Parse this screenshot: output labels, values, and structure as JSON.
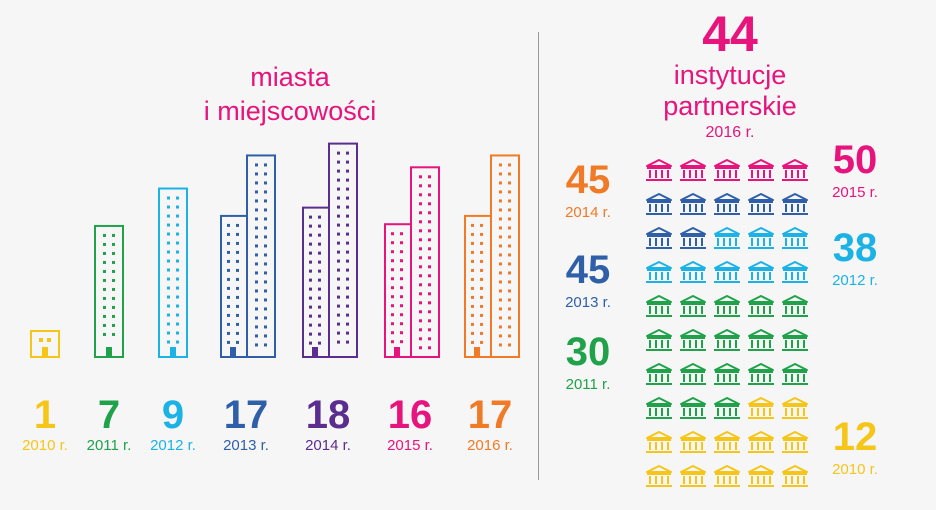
{
  "left_title": {
    "line1": "miasta",
    "line2": "i miejscowości"
  },
  "chart_data": [
    {
      "type": "bar",
      "categories": [
        "2010 r.",
        "2011 r.",
        "2012 r.",
        "2013 r.",
        "2014 r.",
        "2015 r.",
        "2016 r."
      ],
      "values": [
        1,
        7,
        9,
        17,
        18,
        16,
        17
      ],
      "colors": [
        "#f5c518",
        "#1fa24a",
        "#1bb3e6",
        "#2f5fa8",
        "#5b2d8e",
        "#e6147c",
        "#f07a25"
      ],
      "icon": "building-icon"
    },
    {
      "type": "table",
      "header": {
        "total": "44",
        "line1": "instytucje",
        "line2": "partnerskie",
        "year": "2016 r."
      },
      "categories": [
        "2015 r.",
        "2014 r.",
        "2013 r.",
        "2012 r.",
        "2011 r.",
        "2010 r."
      ],
      "values": [
        50,
        45,
        45,
        38,
        30,
        12
      ],
      "colors": [
        "#e6147c",
        "#f07a25",
        "#2f5fa8",
        "#1bb3e6",
        "#1fa24a",
        "#f5c518"
      ],
      "icon": "institution-icon"
    }
  ]
}
